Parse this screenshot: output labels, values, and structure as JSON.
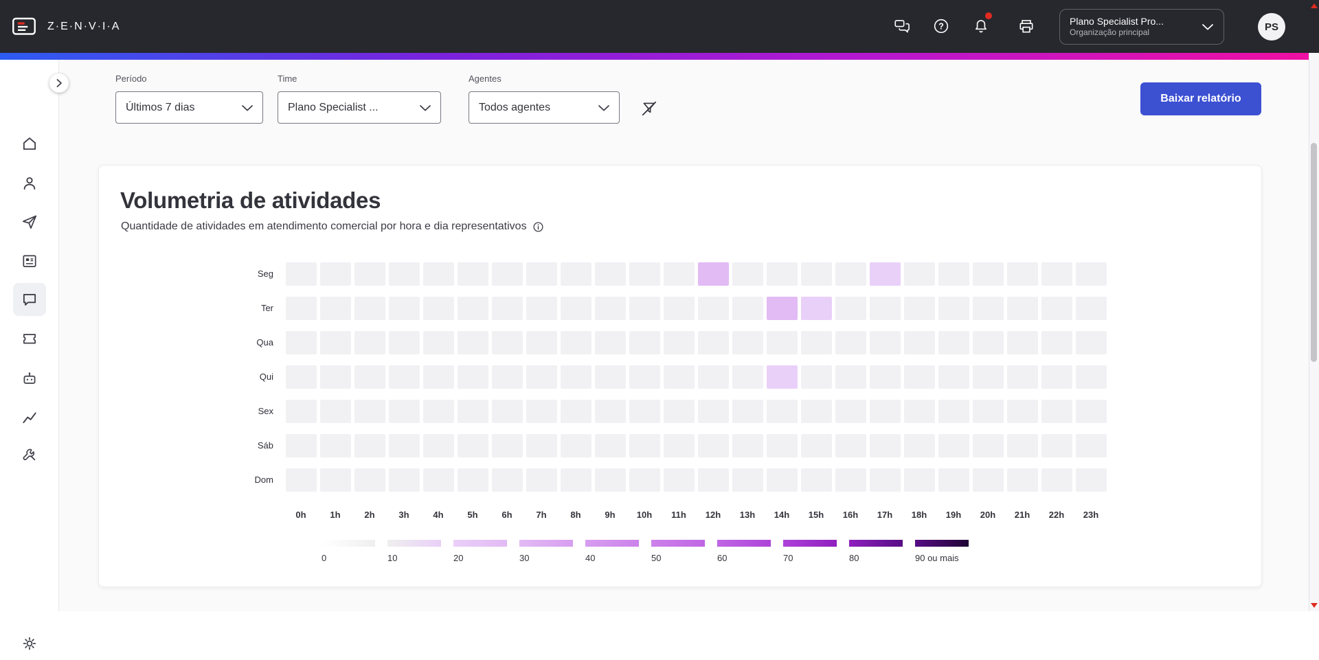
{
  "topbar": {
    "logo_text": "Z·E·N·V·I·A",
    "icons": [
      "conversations-icon",
      "help-icon",
      "notifications-icon",
      "print-icon"
    ],
    "notification_badge": true,
    "org_selector": {
      "title": "Plano Specialist Pro...",
      "subtitle": "Organização principal"
    },
    "avatar_initials": "PS"
  },
  "sidebar": {
    "items": [
      "home",
      "contacts",
      "send",
      "news",
      "conversations",
      "tickets",
      "bot",
      "reports",
      "tools"
    ],
    "active_item": "conversations",
    "bottom_item": "settings"
  },
  "filters": {
    "periodo_label": "Período",
    "periodo_value": "Últimos 7 dias",
    "time_label": "Time",
    "time_value": "Plano Specialist ...",
    "agentes_label": "Agentes",
    "agentes_value": "Todos agentes",
    "download_button": "Baixar relatório"
  },
  "card": {
    "title": "Volumetria de atividades",
    "subtitle": "Quantidade de atividades em atendimento comercial por hora e dia representativos"
  },
  "chart_data": {
    "type": "heatmap",
    "title": "Volumetria de atividades",
    "rows": [
      "Seg",
      "Ter",
      "Qua",
      "Qui",
      "Sex",
      "Sáb",
      "Dom"
    ],
    "columns": [
      "0h",
      "1h",
      "2h",
      "3h",
      "4h",
      "5h",
      "6h",
      "7h",
      "8h",
      "9h",
      "10h",
      "11h",
      "12h",
      "13h",
      "14h",
      "15h",
      "16h",
      "17h",
      "18h",
      "19h",
      "20h",
      "21h",
      "22h",
      "23h"
    ],
    "empty_color": "#f1f1f4",
    "cells": [
      {
        "row": "Seg",
        "col": "12h",
        "value": 20
      },
      {
        "row": "Seg",
        "col": "17h",
        "value": 10
      },
      {
        "row": "Ter",
        "col": "14h",
        "value": 20
      },
      {
        "row": "Ter",
        "col": "15h",
        "value": 10
      },
      {
        "row": "Qui",
        "col": "14h",
        "value": 10
      }
    ],
    "legend": {
      "labels": [
        "0",
        "10",
        "20",
        "30",
        "40",
        "50",
        "60",
        "70",
        "80",
        "90 ou mais"
      ],
      "colors": [
        "#efefef",
        "#e9d0f8",
        "#e2baf4",
        "#d79ef0",
        "#cc82ea",
        "#c065e4",
        "#ad43d9",
        "#8f1fbe",
        "#560d85",
        "#1f0433"
      ]
    }
  },
  "colors": {
    "accent_blue": "#3c50d2",
    "badge_red": "#e02b20",
    "topbar_bg": "#27272e",
    "gradient": [
      "#2c5cf2",
      "#7a22dd",
      "#b618cf",
      "#ef0fa3"
    ]
  }
}
